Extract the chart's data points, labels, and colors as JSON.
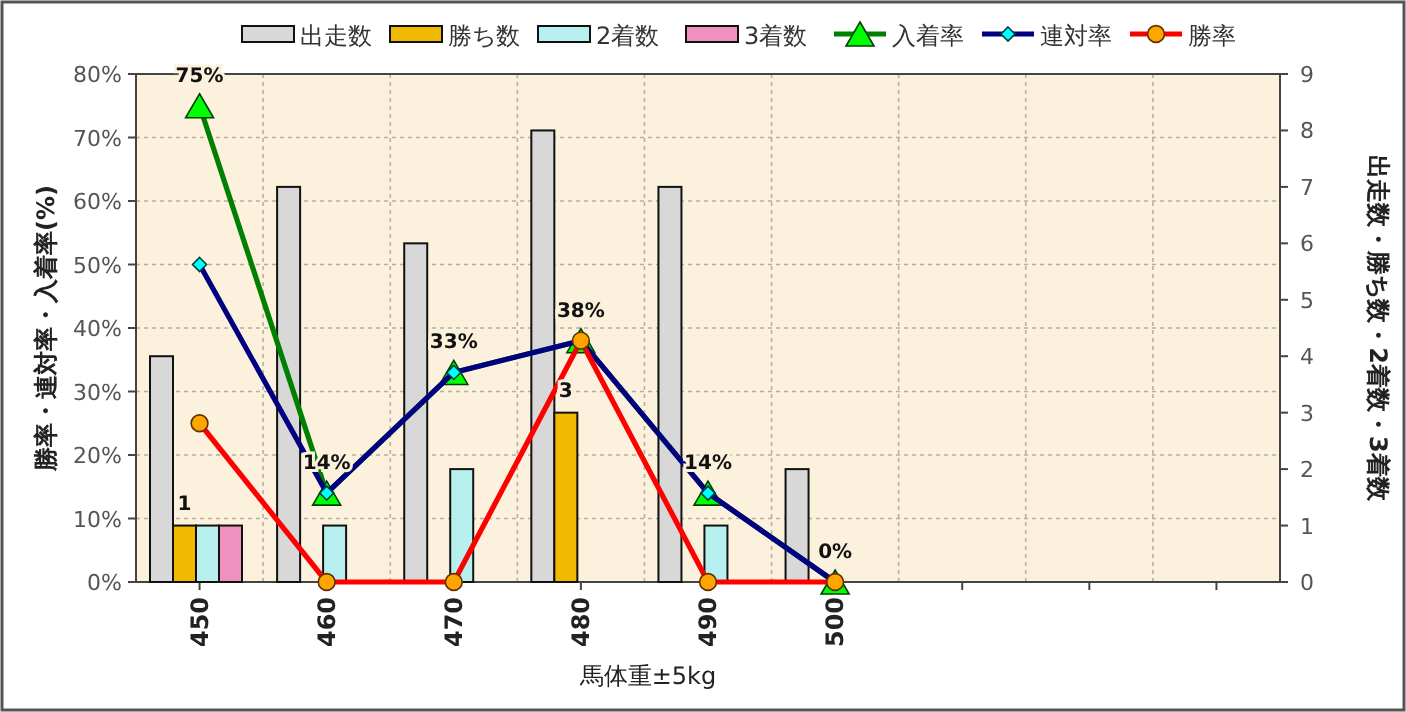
{
  "chart_data": {
    "type": "bar",
    "categories": [
      "450",
      "460",
      "470",
      "480",
      "490",
      "500",
      null,
      null,
      null
    ],
    "xlabel": "馬体重±5kg",
    "ylabel": "勝率・連対率・入着率(%)",
    "y2label": "出走数・勝ち数・2着数・3着数",
    "ylim": [
      0,
      80
    ],
    "yticks": [
      {
        "value": 0,
        "label": "0%"
      },
      {
        "value": 10,
        "label": "10%"
      },
      {
        "value": 20,
        "label": "20%"
      },
      {
        "value": 30,
        "label": "30%"
      },
      {
        "value": 40,
        "label": "40%"
      },
      {
        "value": 50,
        "label": "50%"
      },
      {
        "value": 60,
        "label": "60%"
      },
      {
        "value": 70,
        "label": "70%"
      },
      {
        "value": 80,
        "label": "80%"
      }
    ],
    "y2lim": [
      0,
      9
    ],
    "y2ticks": [
      0,
      1,
      2,
      3,
      4,
      5,
      6,
      7,
      8,
      9
    ],
    "grid": true,
    "legend": "top",
    "series": [
      {
        "name": "出走数",
        "axis": "y2",
        "color": "#d8d8d8",
        "values": [
          4,
          7,
          6,
          8,
          7,
          2,
          null,
          null,
          null
        ]
      },
      {
        "name": "勝ち数",
        "axis": "y2",
        "color": "#f0b800",
        "values": [
          1,
          null,
          null,
          3,
          null,
          null,
          null,
          null,
          null
        ],
        "value_labels": [
          "1",
          null,
          null,
          "3",
          null,
          null,
          null,
          null,
          null
        ]
      },
      {
        "name": "2着数",
        "axis": "y2",
        "color": "#b8f0f0",
        "values": [
          1,
          1,
          2,
          null,
          1,
          null,
          null,
          null,
          null
        ]
      },
      {
        "name": "3着数",
        "axis": "y2",
        "color": "#f090c0",
        "values": [
          1,
          null,
          null,
          null,
          null,
          null,
          null,
          null,
          null
        ]
      },
      {
        "name": "入着率",
        "type": "line",
        "color": "#008000",
        "marker": "triangle",
        "values": [
          75,
          14,
          33,
          38,
          14,
          0,
          null,
          null,
          null
        ],
        "value_labels": [
          "75%",
          "14%",
          "33%",
          "38%",
          "14%",
          "0%",
          null,
          null,
          null
        ]
      },
      {
        "name": "連対率",
        "type": "line",
        "color": "#000080",
        "marker": "diamond",
        "values": [
          50,
          14,
          33,
          38,
          14,
          0,
          null,
          null,
          null
        ]
      },
      {
        "name": "勝率",
        "type": "line",
        "color": "#ff0000",
        "marker": "circle",
        "values": [
          25,
          0,
          0,
          38,
          0,
          0,
          null,
          null,
          null
        ]
      }
    ]
  }
}
